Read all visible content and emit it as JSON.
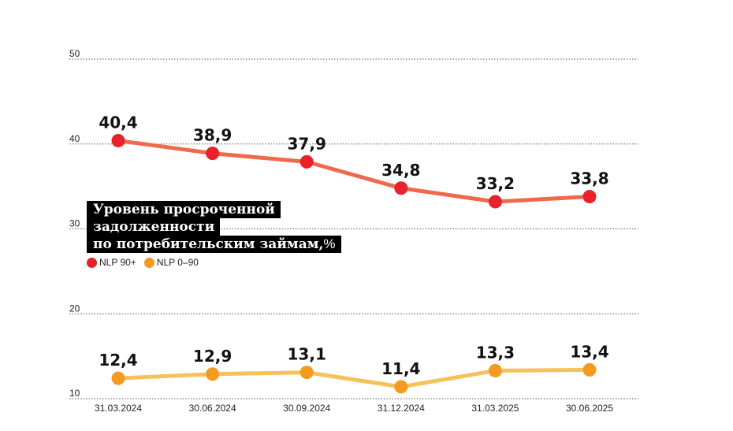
{
  "chart_data": {
    "type": "line",
    "title": "Уровень просроченной задолженности по потребительским займам, %",
    "title_lines": [
      "Уровень просроченной",
      "задолженности",
      "по потребительским займам,"
    ],
    "title_unit": "%",
    "categories": [
      "31.03.2024",
      "30.06.2024",
      "30.09.2024",
      "31.12.2024",
      "31.03.2025",
      "30.06.2025"
    ],
    "series": [
      {
        "name": "NLP 90+",
        "values": [
          40.4,
          38.9,
          37.9,
          34.8,
          33.2,
          33.8
        ],
        "labels": [
          "40,4",
          "38,9",
          "37,9",
          "34,8",
          "33,2",
          "33,8"
        ],
        "line_color": "#ee6a4c",
        "marker_color": "#e8212b"
      },
      {
        "name": "NLP 0–90",
        "values": [
          12.4,
          12.9,
          13.1,
          11.4,
          13.3,
          13.4
        ],
        "labels": [
          "12,4",
          "12,9",
          "13,1",
          "11,4",
          "13,3",
          "13,4"
        ],
        "line_color": "#f7c15a",
        "marker_color": "#f39a1f"
      }
    ],
    "yticks": [
      10,
      20,
      30,
      40,
      50
    ],
    "ytick_labels": [
      "10",
      "20",
      "30",
      "40",
      "50"
    ],
    "ylim": [
      10,
      50
    ],
    "grid": true,
    "grid_style": "dotted",
    "legend_position": "center-left"
  }
}
